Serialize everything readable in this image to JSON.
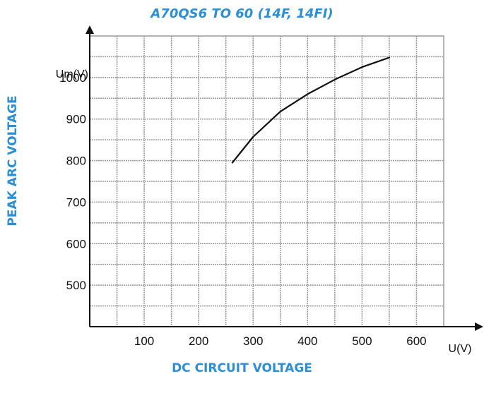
{
  "chart_data": {
    "type": "line",
    "title": "A70QS6 TO 60 (14F, 14FI)",
    "xlabel": "DC CIRCUIT VOLTAGE",
    "ylabel": "PEAK ARC VOLTAGE",
    "x_unit": "U(V)",
    "y_unit": "Um(V)",
    "xlim": [
      0,
      650
    ],
    "ylim": [
      400,
      1100
    ],
    "x_ticks": [
      "100",
      "200",
      "300",
      "400",
      "500",
      "600"
    ],
    "y_ticks": [
      "500",
      "600",
      "700",
      "800",
      "900",
      "1000"
    ],
    "grid": true,
    "series": [
      {
        "x": [
          262,
          300,
          350,
          400,
          450,
          500,
          550
        ],
        "y": [
          795,
          857,
          918,
          960,
          995,
          1025,
          1048
        ]
      }
    ],
    "colors": {
      "labels": "#2b8fd6",
      "line": "#111111",
      "grid": "#9a9a9a"
    }
  }
}
